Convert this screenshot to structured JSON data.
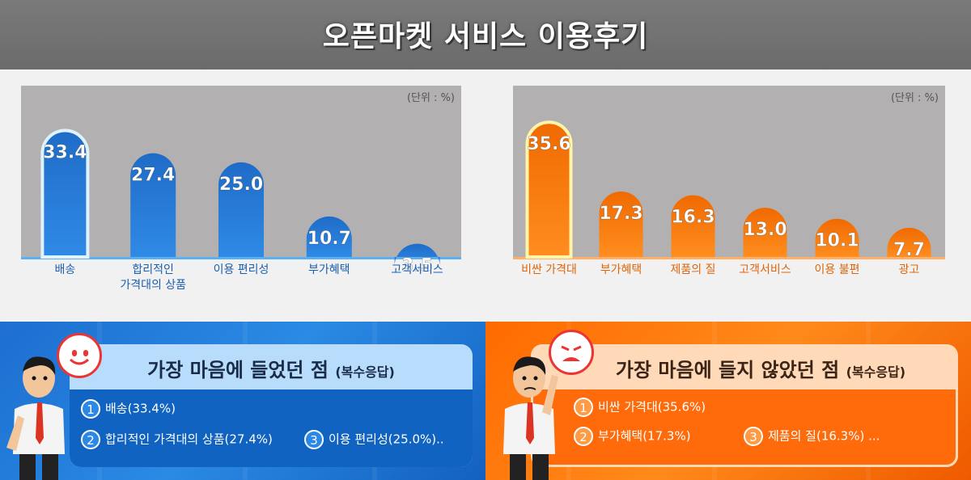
{
  "header": {
    "title": "오픈마켓 서비스 이용후기"
  },
  "chart_data": [
    {
      "type": "bar",
      "unit_label": "(단위 : %)",
      "categories": [
        "배송",
        "합리적인\n가격대의 상품",
        "이용 편리성",
        "부가혜택",
        "고객서비스"
      ],
      "values": [
        33.4,
        27.4,
        25.0,
        10.7,
        3.5
      ],
      "value_labels": [
        "33.4",
        "27.4",
        "25.0",
        "10.7",
        "3.5"
      ],
      "ylim": [
        0,
        38
      ],
      "highlight_index": 0,
      "colors": {
        "bar_top": "#1f6cc7",
        "bar_bottom": "#2f8ae6",
        "highlight_outline": "#dff2ff",
        "baseline": "#5ab0f2",
        "label": "#1b5fb0",
        "plot_bg": "#b3b0b1"
      }
    },
    {
      "type": "bar",
      "unit_label": "(단위 : %)",
      "categories": [
        "비싼 가격대",
        "부가혜택",
        "제품의 질",
        "고객서비스",
        "이용 불편",
        "광고"
      ],
      "values": [
        35.6,
        17.3,
        16.3,
        13.0,
        10.1,
        7.7
      ],
      "value_labels": [
        "35.6",
        "17.3",
        "16.3",
        "13.0",
        "10.1",
        "7.7"
      ],
      "ylim": [
        0,
        38
      ],
      "highlight_index": 0,
      "colors": {
        "bar_top": "#f06a00",
        "bar_bottom": "#ff8d1f",
        "highlight_outline": "#fff4a8",
        "baseline": "#ffb066",
        "label": "#e0650a",
        "plot_bg": "#b3b0b1"
      }
    }
  ],
  "liked": {
    "title": "가장 마음에 들었던 점",
    "subtitle": "(복수응답)",
    "items": [
      {
        "num": "1",
        "text": "배송(33.4%)"
      },
      {
        "num": "2",
        "text": "합리적인 가격대의 상품(27.4%)"
      },
      {
        "num": "3",
        "text": "이용 편리성(25.0%).."
      }
    ]
  },
  "disliked": {
    "title": "가장 마음에 들지 않았던 점",
    "subtitle": "(복수응답)",
    "items": [
      {
        "num": "1",
        "text": "비싼 가격대(35.6%)"
      },
      {
        "num": "2",
        "text": "부가혜택(17.3%)"
      },
      {
        "num": "3",
        "text": "제품의 질(16.3%) ..."
      }
    ]
  },
  "icons": {
    "happy": "smiley-face-icon",
    "sad": "angry-face-icon"
  }
}
